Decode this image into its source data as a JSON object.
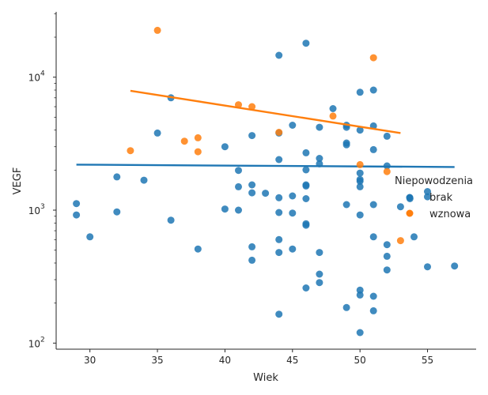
{
  "chart_data": {
    "type": "scatter",
    "title": "",
    "xlabel": "Wiek",
    "ylabel": "VEGF",
    "xlim": [
      27.5,
      58.6
    ],
    "ylim": [
      90,
      31000
    ],
    "yscale": "log",
    "x_ticks": [
      30,
      35,
      40,
      45,
      50,
      55
    ],
    "y_ticks": [
      {
        "value": 100,
        "base": "10",
        "exp": "2"
      },
      {
        "value": 1000,
        "base": "10",
        "exp": "3"
      },
      {
        "value": 10000,
        "base": "10",
        "exp": "4"
      }
    ],
    "grid": false,
    "legend": {
      "title": "Niepowodzenia",
      "placement": "center-right"
    },
    "series": [
      {
        "name": "brak",
        "color": "#1f77b4",
        "points": [
          [
            29,
            1120
          ],
          [
            29,
            920
          ],
          [
            30,
            630
          ],
          [
            32,
            1780
          ],
          [
            32,
            970
          ],
          [
            34,
            1680
          ],
          [
            35,
            3800
          ],
          [
            36,
            7000
          ],
          [
            36,
            840
          ],
          [
            38,
            510
          ],
          [
            40,
            3000
          ],
          [
            40,
            1020
          ],
          [
            41,
            1990
          ],
          [
            41,
            1500
          ],
          [
            41,
            1000
          ],
          [
            42,
            3640
          ],
          [
            42,
            1550
          ],
          [
            42,
            1350
          ],
          [
            42,
            530
          ],
          [
            42,
            420
          ],
          [
            43,
            1340
          ],
          [
            44,
            14600
          ],
          [
            44,
            3800
          ],
          [
            44,
            2400
          ],
          [
            44,
            1240
          ],
          [
            44,
            960
          ],
          [
            44,
            600
          ],
          [
            44,
            480
          ],
          [
            44,
            165
          ],
          [
            45,
            4350
          ],
          [
            45,
            1280
          ],
          [
            45,
            950
          ],
          [
            45,
            510
          ],
          [
            46,
            18000
          ],
          [
            46,
            2700
          ],
          [
            46,
            2010
          ],
          [
            46,
            1550
          ],
          [
            46,
            1520
          ],
          [
            46,
            1220
          ],
          [
            46,
            790
          ],
          [
            46,
            770
          ],
          [
            46,
            260
          ],
          [
            47,
            4200
          ],
          [
            47,
            2450
          ],
          [
            47,
            2230
          ],
          [
            47,
            480
          ],
          [
            47,
            330
          ],
          [
            47,
            285
          ],
          [
            48,
            5800
          ],
          [
            49,
            4350
          ],
          [
            49,
            4200
          ],
          [
            49,
            3200
          ],
          [
            49,
            3100
          ],
          [
            49,
            1100
          ],
          [
            49,
            185
          ],
          [
            50,
            7700
          ],
          [
            50,
            4000
          ],
          [
            50,
            1900
          ],
          [
            50,
            1700
          ],
          [
            50,
            1650
          ],
          [
            50,
            1500
          ],
          [
            50,
            920
          ],
          [
            50,
            250
          ],
          [
            50,
            230
          ],
          [
            50,
            120
          ],
          [
            51,
            8000
          ],
          [
            51,
            4300
          ],
          [
            51,
            2850
          ],
          [
            51,
            1100
          ],
          [
            51,
            630
          ],
          [
            51,
            225
          ],
          [
            51,
            175
          ],
          [
            52,
            3600
          ],
          [
            52,
            2150
          ],
          [
            52,
            550
          ],
          [
            52,
            450
          ],
          [
            52,
            355
          ],
          [
            53,
            1060
          ],
          [
            53.7,
            1220
          ],
          [
            54,
            630
          ],
          [
            55,
            1380
          ],
          [
            55,
            1260
          ],
          [
            55,
            375
          ],
          [
            57,
            380
          ]
        ],
        "trend": {
          "x": [
            29,
            57
          ],
          "y": [
            2200,
            2110
          ]
        }
      },
      {
        "name": "wznowa",
        "color": "#ff7f0e",
        "points": [
          [
            33,
            2800
          ],
          [
            35,
            22500
          ],
          [
            37,
            3300
          ],
          [
            38,
            3500
          ],
          [
            38,
            2750
          ],
          [
            41,
            6200
          ],
          [
            42,
            6000
          ],
          [
            44,
            3850
          ],
          [
            48,
            5100
          ],
          [
            50,
            2200
          ],
          [
            51,
            14000
          ],
          [
            52,
            1950
          ],
          [
            53,
            590
          ]
        ],
        "trend": {
          "x": [
            33,
            53
          ],
          "y": [
            7900,
            3800
          ]
        }
      }
    ]
  }
}
